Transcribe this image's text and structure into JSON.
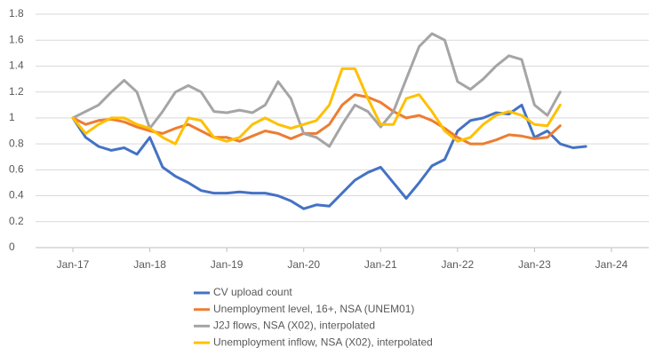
{
  "chart_data": {
    "type": "line",
    "x": [
      "Jan-17",
      "Mar-17",
      "May-17",
      "Jul-17",
      "Sep-17",
      "Nov-17",
      "Jan-18",
      "Mar-18",
      "May-18",
      "Jul-18",
      "Sep-18",
      "Nov-18",
      "Jan-19",
      "Mar-19",
      "May-19",
      "Jul-19",
      "Sep-19",
      "Nov-19",
      "Jan-20",
      "Mar-20",
      "May-20",
      "Jul-20",
      "Sep-20",
      "Nov-20",
      "Jan-21",
      "Mar-21",
      "May-21",
      "Jul-21",
      "Sep-21",
      "Nov-21",
      "Jan-22",
      "Mar-22",
      "May-22",
      "Jul-22",
      "Sep-22",
      "Nov-22",
      "Jan-23",
      "Mar-23",
      "May-23",
      "Jul-23",
      "Sep-23"
    ],
    "series": [
      {
        "name": "CV upload count",
        "color": "#4472c4",
        "values": [
          1.0,
          0.85,
          0.78,
          0.75,
          0.77,
          0.72,
          0.85,
          0.62,
          0.55,
          0.5,
          0.44,
          0.42,
          0.42,
          0.43,
          0.42,
          0.42,
          0.4,
          0.36,
          0.3,
          0.33,
          0.32,
          0.42,
          0.52,
          0.58,
          0.62,
          0.5,
          0.38,
          0.5,
          0.63,
          0.68,
          0.9,
          0.98,
          1.0,
          1.04,
          1.03,
          1.1,
          0.85,
          0.9,
          0.8,
          0.77,
          0.78
        ]
      },
      {
        "name": "Unemployment level, 16+, NSA (UNEM01)",
        "color": "#ed7d31",
        "values": [
          1.0,
          0.95,
          0.98,
          0.99,
          0.97,
          0.93,
          0.9,
          0.88,
          0.92,
          0.95,
          0.9,
          0.85,
          0.85,
          0.82,
          0.86,
          0.9,
          0.88,
          0.84,
          0.88,
          0.88,
          0.95,
          1.1,
          1.18,
          1.16,
          1.12,
          1.05,
          1.0,
          1.02,
          0.98,
          0.92,
          0.85,
          0.8,
          0.8,
          0.83,
          0.87,
          0.86,
          0.84,
          0.85,
          0.94,
          null,
          null
        ]
      },
      {
        "name": "J2J flows, NSA (X02), interpolated",
        "color": "#a5a5a5",
        "values": [
          1.0,
          1.05,
          1.1,
          1.2,
          1.29,
          1.2,
          0.92,
          1.05,
          1.2,
          1.25,
          1.2,
          1.05,
          1.04,
          1.06,
          1.04,
          1.1,
          1.28,
          1.15,
          0.88,
          0.85,
          0.78,
          0.95,
          1.1,
          1.05,
          0.93,
          1.05,
          1.3,
          1.55,
          1.65,
          1.6,
          1.28,
          1.22,
          1.3,
          1.4,
          1.48,
          1.45,
          1.1,
          1.02,
          1.2,
          null,
          null
        ]
      },
      {
        "name": "Unemployment inflow, NSA (X02), interpolated",
        "color": "#ffc000",
        "values": [
          1.0,
          0.88,
          0.95,
          1.0,
          1.0,
          0.95,
          0.92,
          0.85,
          0.8,
          1.0,
          0.98,
          0.85,
          0.82,
          0.85,
          0.95,
          1.0,
          0.95,
          0.92,
          0.95,
          0.98,
          1.1,
          1.38,
          1.38,
          1.15,
          0.95,
          0.95,
          1.15,
          1.18,
          1.05,
          0.9,
          0.82,
          0.85,
          0.95,
          1.02,
          1.05,
          1.02,
          0.95,
          0.94,
          1.1,
          null,
          null
        ]
      }
    ],
    "xticks": [
      "Jan-17",
      "Jan-18",
      "Jan-19",
      "Jan-20",
      "Jan-21",
      "Jan-22",
      "Jan-23",
      "Jan-24"
    ],
    "ylim": [
      0,
      1.8
    ],
    "yticks": [
      0,
      0.2,
      0.4,
      0.6,
      0.8,
      1,
      1.2,
      1.4,
      1.6,
      1.8
    ],
    "grid": true,
    "legend": "bottom"
  }
}
